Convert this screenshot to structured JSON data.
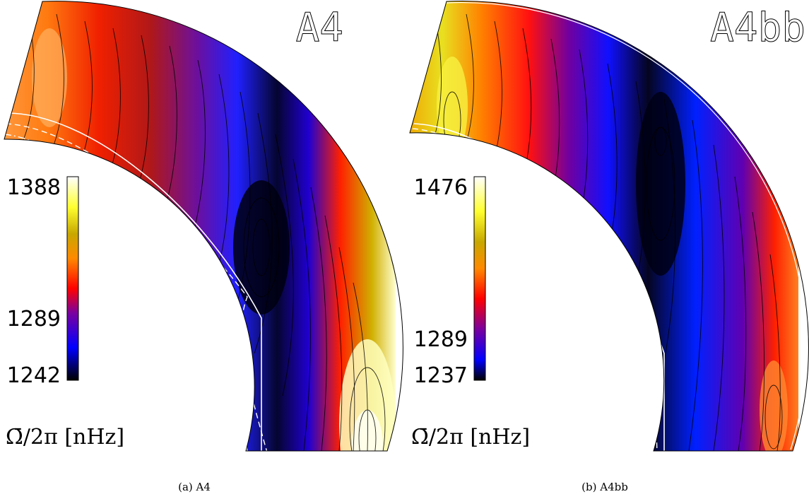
{
  "chart_data": [
    {
      "type": "heatmap",
      "panel_label": "A4",
      "caption": "(a) A4",
      "colorbar": {
        "label": "Ω̄/2π [nHz]",
        "ticks": [
          "1388",
          "1289",
          "1242"
        ],
        "min": 1242,
        "max": 1388,
        "colormap": [
          "#000000",
          "#0000ff",
          "#ff0000",
          "#ffa500",
          "#ffff00",
          "#ffffff"
        ]
      },
      "mean_rotation_sign_at_equator": "high",
      "pattern": "slow band mid-latitude, fast equator, dashed overshoot contour"
    },
    {
      "type": "heatmap",
      "panel_label": "A4bb",
      "caption": "(b) A4bb",
      "colorbar": {
        "label": "Ω̄/2π [nHz]",
        "ticks": [
          "1476",
          "1289",
          "1237"
        ],
        "min": 1237,
        "max": 1476,
        "colormap": [
          "#000000",
          "#0000ff",
          "#ff0000",
          "#ffa500",
          "#ffff00",
          "#ffffff"
        ]
      },
      "pattern": "broad slow band, fast high-latitude and equator"
    }
  ]
}
